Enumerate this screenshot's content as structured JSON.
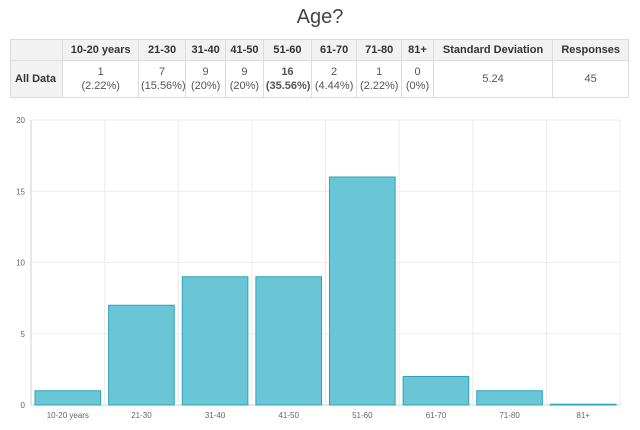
{
  "title": "Age?",
  "table": {
    "headers": [
      "",
      "10-20 years",
      "21-30",
      "31-40",
      "41-50",
      "51-60",
      "61-70",
      "71-80",
      "81+",
      "Standard Deviation",
      "Responses"
    ],
    "row_label": "All Data",
    "cells": [
      {
        "count": "1",
        "pct": "(2.22%)"
      },
      {
        "count": "7",
        "pct": "(15.56%)"
      },
      {
        "count": "9",
        "pct": "(20%)"
      },
      {
        "count": "9",
        "pct": "(20%)"
      },
      {
        "count": "16",
        "pct": "(35.56%)",
        "highlight": true
      },
      {
        "count": "2",
        "pct": "(4.44%)"
      },
      {
        "count": "1",
        "pct": "(2.22%)"
      },
      {
        "count": "0",
        "pct": "(0%)"
      }
    ],
    "std_dev": "5.24",
    "responses": "45"
  },
  "chart_data": {
    "type": "bar",
    "title": "",
    "xlabel": "",
    "ylabel": "",
    "categories": [
      "10-20 years",
      "21-30",
      "31-40",
      "41-50",
      "51-60",
      "61-70",
      "71-80",
      "81+"
    ],
    "values": [
      1,
      7,
      9,
      9,
      16,
      2,
      1,
      0
    ],
    "ylim": [
      0,
      20
    ],
    "yticks": [
      "0",
      "5",
      "10",
      "15",
      "20"
    ],
    "grid": true,
    "legend": "none",
    "bar_color": "#6ac6d6",
    "bar_border_color": "#2ca3b8"
  }
}
